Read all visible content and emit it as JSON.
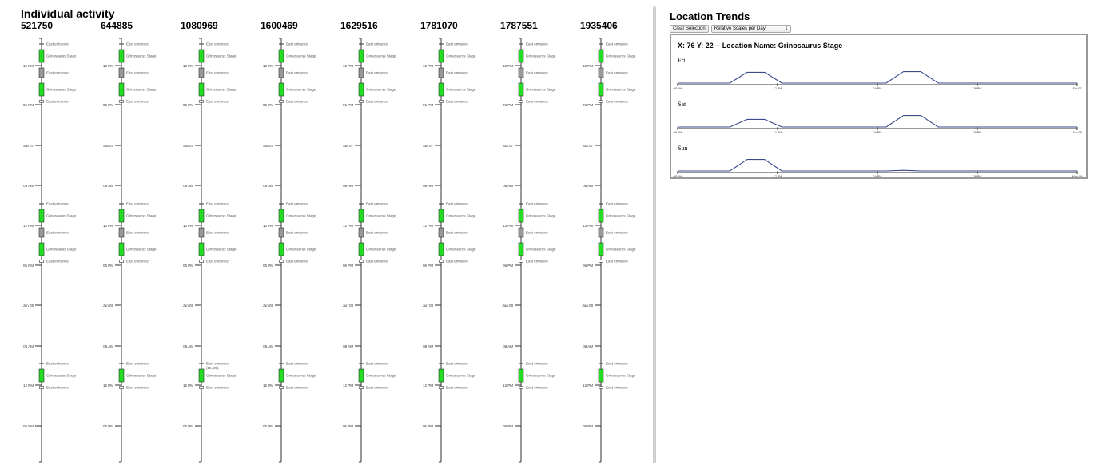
{
  "individual": {
    "title": "Individual activity",
    "user_ids": [
      "521750",
      "644885",
      "1080969",
      "1600469",
      "1629516",
      "1781070",
      "1787551",
      "1935406"
    ],
    "time_ticks": [
      "12 PM",
      "06 PM",
      "Sat 07",
      "06 AM",
      "12 PM",
      "06 PM",
      "Jun 08",
      "06 AM",
      "12 PM",
      "06 PM"
    ],
    "events": [
      "East entrance",
      "Grinosaurus Stage",
      "East entrance",
      "Grinosaurus Stage",
      "East entrance",
      "East entrance",
      "Grinosaurus Stage",
      "East entrance",
      "Grinosaurus Stage",
      "East entrance",
      "East entrance",
      "Grinosaurus Stage",
      "East entrance"
    ],
    "annotation_1080969": "(16, 39)",
    "colors": {
      "active": "#22dd22",
      "inactive": "#999999",
      "axis": "#333333"
    }
  },
  "trends": {
    "title": "Location Trends",
    "clear_button": "Clear Selection",
    "scale_select": "Relative Scales per Day",
    "scale_select_arrow": "↕",
    "panel_title": "X: 76 Y: 22 -- Location Name: Grinosaurus Stage",
    "days": [
      {
        "label": "Fri",
        "ticks": [
          "08 AM",
          "12 PM",
          "04 PM",
          "08 PM",
          "Sat 07"
        ],
        "levels": [
          0,
          0,
          0,
          0,
          0.85,
          0.85,
          0,
          0,
          0,
          0,
          0,
          0,
          0,
          0.9,
          0.9,
          0,
          0,
          0,
          0,
          0,
          0,
          0,
          0,
          0
        ]
      },
      {
        "label": "Sat",
        "ticks": [
          "08 AM",
          "12 PM",
          "04 PM",
          "08 PM",
          "Jun 08"
        ],
        "levels": [
          0,
          0,
          0,
          0,
          0.6,
          0.6,
          0,
          0,
          0,
          0,
          0,
          0,
          0,
          0.9,
          0.9,
          0,
          0,
          0,
          0,
          0,
          0,
          0,
          0,
          0
        ]
      },
      {
        "label": "Sun",
        "ticks": [
          "08 AM",
          "12 PM",
          "04 PM",
          "08 PM",
          "Mon 09"
        ],
        "levels": [
          0,
          0,
          0,
          0,
          0.9,
          0.9,
          0,
          0,
          0,
          0,
          0,
          0,
          0,
          0.05,
          0,
          0,
          0,
          0,
          0,
          0,
          0,
          0,
          0,
          0
        ]
      }
    ],
    "line_color": "#3b4a8c"
  }
}
